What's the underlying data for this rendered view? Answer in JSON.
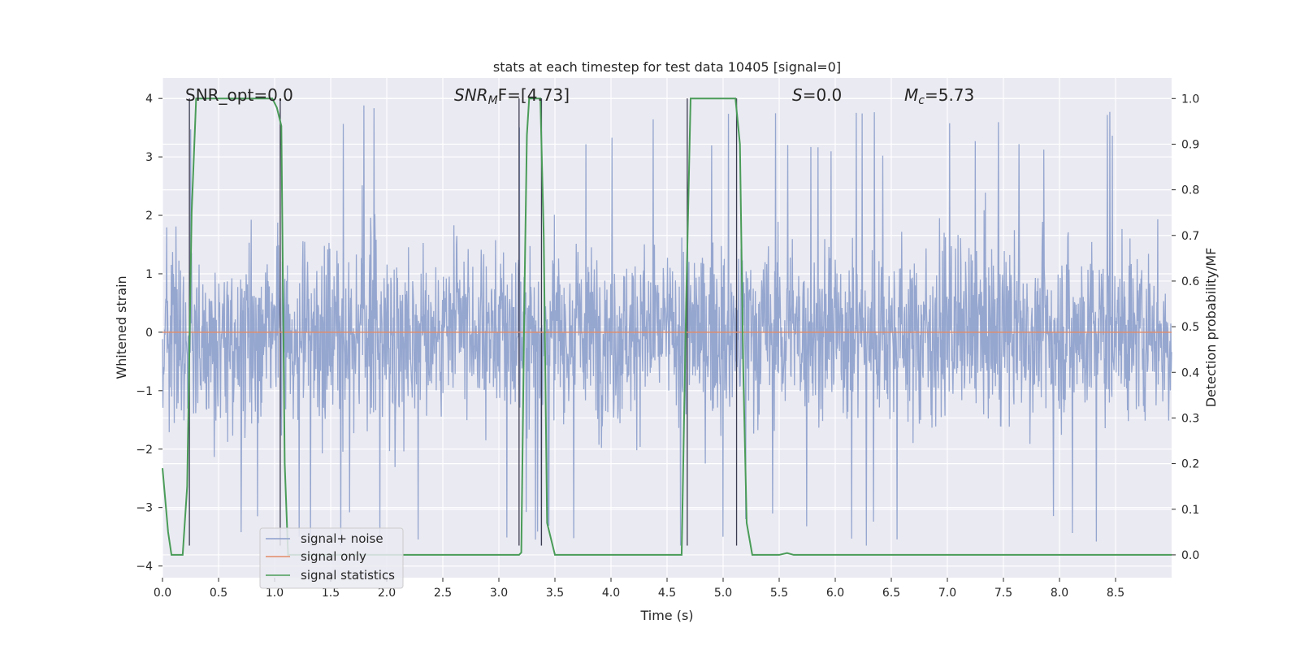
{
  "chart_data": {
    "type": "line",
    "title": "stats at each timestep for test data 10405 [signal=0]",
    "xlabel": "Time (s)",
    "ylabel": "Whitened strain",
    "y2label": "Detection probability/MF",
    "xlim": [
      0.0,
      9.0
    ],
    "ylim": [
      -4.2,
      4.35
    ],
    "y2lim": [
      -0.05,
      1.045
    ],
    "xticks": [
      "0.0",
      "0.5",
      "1.0",
      "1.5",
      "2.0",
      "2.5",
      "3.0",
      "3.5",
      "4.0",
      "4.5",
      "5.0",
      "5.5",
      "6.0",
      "6.5",
      "7.0",
      "7.5",
      "8.0",
      "8.5"
    ],
    "yticks": [
      "−4",
      "−3",
      "−2",
      "−1",
      "0",
      "1",
      "2",
      "3",
      "4"
    ],
    "y2ticks": [
      "0.0",
      "0.1",
      "0.2",
      "0.3",
      "0.4",
      "0.5",
      "0.6",
      "0.7",
      "0.8",
      "0.9",
      "1.0"
    ],
    "grid": true,
    "legend_position": "lower-left",
    "annotations": {
      "snr_opt": "SNR_opt=0.0",
      "snr_mf_prefix": "SNR",
      "snr_mf_sub": "M",
      "snr_mf_suffix": "F=[4.73]",
      "s_italic": "S",
      "s_value": "=0.0",
      "mc_italic": "M",
      "mc_sub": "c",
      "mc_value": "=5.73"
    },
    "series": [
      {
        "name": "signal+ noise",
        "color": "#8c9fcb",
        "description": "whitened strain noise, approx. range -3.7 to 4.0"
      },
      {
        "name": "signal only",
        "color": "#e38b67",
        "values_constant": 0.0
      },
      {
        "name": "signal statistics",
        "color": "#4a9c58",
        "x": [
          0.0,
          0.05,
          0.08,
          0.18,
          0.22,
          0.26,
          0.3,
          0.98,
          1.02,
          1.06,
          1.09,
          1.12,
          3.18,
          3.2,
          3.23,
          3.25,
          3.27,
          3.37,
          3.4,
          3.43,
          3.5,
          4.63,
          4.67,
          4.71,
          5.11,
          5.15,
          5.18,
          5.21,
          5.26,
          5.5,
          5.57,
          5.63,
          9.0
        ],
        "values": [
          0.19,
          0.05,
          0.0,
          0.0,
          0.15,
          0.75,
          1.0,
          1.0,
          0.98,
          0.94,
          0.2,
          0.0,
          0.0,
          0.005,
          0.6,
          0.92,
          1.0,
          1.0,
          0.7,
          0.07,
          0.0,
          0.0,
          0.55,
          1.0,
          1.0,
          0.9,
          0.4,
          0.07,
          0.0,
          0.0,
          0.004,
          0.0,
          0.0
        ]
      },
      {
        "name": "event markers",
        "color": "#3b3b50",
        "x": [
          0.24,
          1.05,
          3.18,
          3.38,
          4.68,
          5.12
        ]
      }
    ],
    "legend": [
      "signal+ noise",
      "signal only",
      "signal statistics"
    ]
  }
}
